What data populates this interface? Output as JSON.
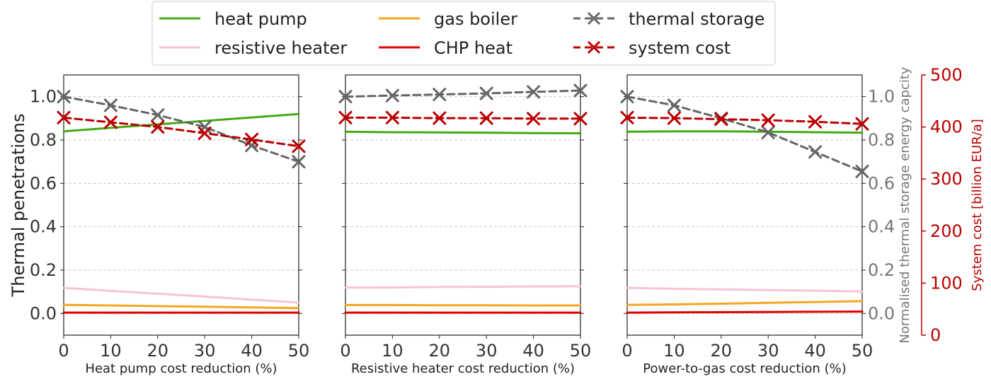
{
  "legend": [
    {
      "label": "heat pump",
      "color": "#44aa11",
      "style": "solid",
      "marker": "none"
    },
    {
      "label": "resistive heater",
      "color": "#f8c4cf",
      "style": "solid",
      "marker": "none"
    },
    {
      "label": "gas boiler",
      "color": "#f5a623",
      "style": "solid",
      "marker": "none"
    },
    {
      "label": "CHP heat",
      "color": "#e00000",
      "style": "solid",
      "marker": "none"
    },
    {
      "label": "thermal storage",
      "color": "#666666",
      "style": "dashed",
      "marker": "x"
    },
    {
      "label": "system cost",
      "color": "#bb0000",
      "style": "dashed",
      "marker": "x"
    }
  ],
  "axes": {
    "ylabel_left": "Thermal penetrations",
    "ylabel_right_storage": "Normalised thermal storage energy capcity",
    "ylabel_right_cost": "System cost [billion EUR/a]",
    "y_ticks": [
      "0.0",
      "0.2",
      "0.4",
      "0.6",
      "0.8",
      "1.0"
    ],
    "cost_ticks": [
      "0",
      "100",
      "200",
      "300",
      "400",
      "500"
    ],
    "x_ticks": [
      "0",
      "10",
      "20",
      "30",
      "40",
      "50"
    ],
    "storage_color": "#777777",
    "cost_color": "#bb0000"
  },
  "chart_data": [
    {
      "type": "line",
      "xlabel": "Heat pump cost reduction (%)",
      "x": [
        0,
        10,
        20,
        30,
        40,
        50
      ],
      "xlim": [
        0,
        50
      ],
      "ylim": [
        -0.1,
        1.1
      ],
      "cost_ylim": [
        0,
        500
      ],
      "grid": "y",
      "series": [
        {
          "name": "heat pump",
          "values": [
            0.84,
            0.856,
            0.872,
            0.888,
            0.904,
            0.92
          ]
        },
        {
          "name": "resistive heater",
          "values": [
            0.118,
            0.104,
            0.091,
            0.078,
            0.064,
            0.05
          ]
        },
        {
          "name": "gas boiler",
          "values": [
            0.04,
            0.037,
            0.034,
            0.031,
            0.028,
            0.025
          ]
        },
        {
          "name": "CHP heat",
          "values": [
            0.004,
            0.004,
            0.004,
            0.004,
            0.004,
            0.004
          ]
        },
        {
          "name": "thermal storage",
          "axis": "storage",
          "values": [
            1.0,
            0.96,
            0.915,
            0.86,
            0.775,
            0.7
          ]
        },
        {
          "name": "system cost",
          "axis": "cost",
          "values": [
            418,
            409,
            400,
            388,
            376,
            363
          ]
        }
      ]
    },
    {
      "type": "line",
      "xlabel": "Resistive heater cost reduction (%)",
      "x": [
        0,
        10,
        20,
        30,
        40,
        50
      ],
      "xlim": [
        0,
        50
      ],
      "ylim": [
        -0.1,
        1.1
      ],
      "cost_ylim": [
        0,
        500
      ],
      "grid": "y",
      "series": [
        {
          "name": "heat pump",
          "values": [
            0.838,
            0.836,
            0.835,
            0.834,
            0.832,
            0.831
          ]
        },
        {
          "name": "resistive heater",
          "values": [
            0.119,
            0.12,
            0.122,
            0.123,
            0.125,
            0.126
          ]
        },
        {
          "name": "gas boiler",
          "values": [
            0.039,
            0.039,
            0.038,
            0.038,
            0.037,
            0.037
          ]
        },
        {
          "name": "CHP heat",
          "values": [
            0.004,
            0.004,
            0.004,
            0.004,
            0.004,
            0.004
          ]
        },
        {
          "name": "thermal storage",
          "axis": "storage",
          "values": [
            1.0,
            1.005,
            1.01,
            1.015,
            1.022,
            1.028
          ]
        },
        {
          "name": "system cost",
          "axis": "cost",
          "values": [
            418,
            418,
            417,
            417,
            416,
            416
          ]
        }
      ]
    },
    {
      "type": "line",
      "xlabel": "Power-to-gas cost reduction (%)",
      "x": [
        0,
        10,
        20,
        30,
        40,
        50
      ],
      "xlim": [
        0,
        50
      ],
      "ylim": [
        -0.1,
        1.1
      ],
      "cost_ylim": [
        0,
        500
      ],
      "grid": "y",
      "series": [
        {
          "name": "heat pump",
          "values": [
            0.838,
            0.84,
            0.84,
            0.838,
            0.836,
            0.834
          ]
        },
        {
          "name": "resistive heater",
          "values": [
            0.118,
            0.114,
            0.111,
            0.108,
            0.105,
            0.102
          ]
        },
        {
          "name": "gas boiler",
          "values": [
            0.04,
            0.042,
            0.045,
            0.049,
            0.053,
            0.057
          ]
        },
        {
          "name": "CHP heat",
          "values": [
            0.004,
            0.005,
            0.006,
            0.007,
            0.008,
            0.009
          ]
        },
        {
          "name": "thermal storage",
          "axis": "storage",
          "values": [
            1.0,
            0.96,
            0.9,
            0.835,
            0.745,
            0.655
          ]
        },
        {
          "name": "system cost",
          "axis": "cost",
          "values": [
            418,
            417,
            415,
            413,
            410,
            406
          ]
        }
      ]
    }
  ]
}
